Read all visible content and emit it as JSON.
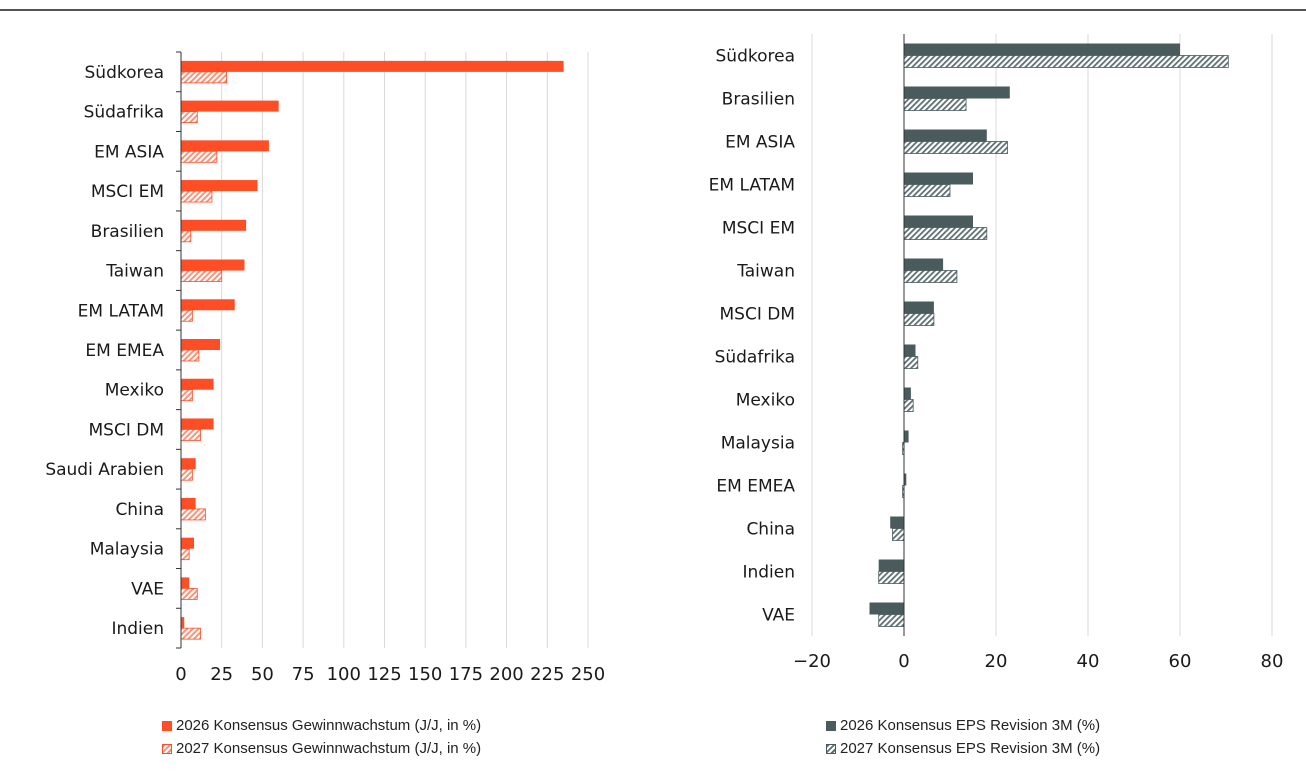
{
  "chart_data": [
    {
      "type": "bar",
      "orientation": "horizontal",
      "categories": [
        "Südkorea",
        "Südafrika",
        "EM ASIA",
        "MSCI EM",
        "Brasilien",
        "Taiwan",
        "EM LATAM",
        "EM EMEA",
        "Mexiko",
        "MSCI DM",
        "Saudi Arabien",
        "China",
        "Malaysia",
        "VAE",
        "Indien"
      ],
      "series": [
        {
          "name": "2026 Konsensus Gewinnwachstum (J/J, in %)",
          "values": [
            235,
            60,
            54,
            47,
            40,
            39,
            33,
            24,
            20,
            20,
            9,
            9,
            8,
            5,
            2
          ],
          "color": "#FF4E26",
          "style": "solid"
        },
        {
          "name": "2027 Konsensus Gewinnwachstum (J/J, in %)",
          "values": [
            28,
            10,
            22,
            19,
            6,
            25,
            7,
            11,
            7,
            12,
            7,
            15,
            5,
            10,
            12
          ],
          "color": "#FF4E26",
          "style": "hatched"
        }
      ],
      "xlim": [
        0,
        250
      ],
      "xticks": [
        0,
        25,
        50,
        75,
        100,
        125,
        150,
        175,
        200,
        225,
        250
      ],
      "grid": "vertical"
    },
    {
      "type": "bar",
      "orientation": "horizontal",
      "categories": [
        "Südkorea",
        "Brasilien",
        "EM ASIA",
        "EM LATAM",
        "MSCI EM",
        "Taiwan",
        "MSCI DM",
        "Südafrika",
        "Mexiko",
        "Malaysia",
        "EM EMEA",
        "China",
        "Indien",
        "VAE"
      ],
      "series": [
        {
          "name": "2026 Konsensus EPS Revision 3M (%)",
          "values": [
            60,
            23,
            18,
            15,
            15,
            8.5,
            6.5,
            2.5,
            1.5,
            1,
            0.5,
            -3,
            -5.5,
            -7.5
          ],
          "color": "#4A5B5E",
          "style": "solid"
        },
        {
          "name": "2027 Konsensus EPS Revision 3M (%)",
          "values": [
            70.5,
            13.5,
            22.5,
            10,
            18,
            11.5,
            6.5,
            3,
            2,
            -0.3,
            -0.3,
            -2.5,
            -5.5,
            -5.5
          ],
          "color": "#4A5B5E",
          "style": "hatched"
        }
      ],
      "xlim": [
        -20,
        80
      ],
      "xticks": [
        -20,
        0,
        20,
        40,
        60,
        80
      ],
      "xtick_labels": [
        "−20",
        "0",
        "20",
        "40",
        "60",
        "80"
      ],
      "grid": "vertical"
    }
  ]
}
